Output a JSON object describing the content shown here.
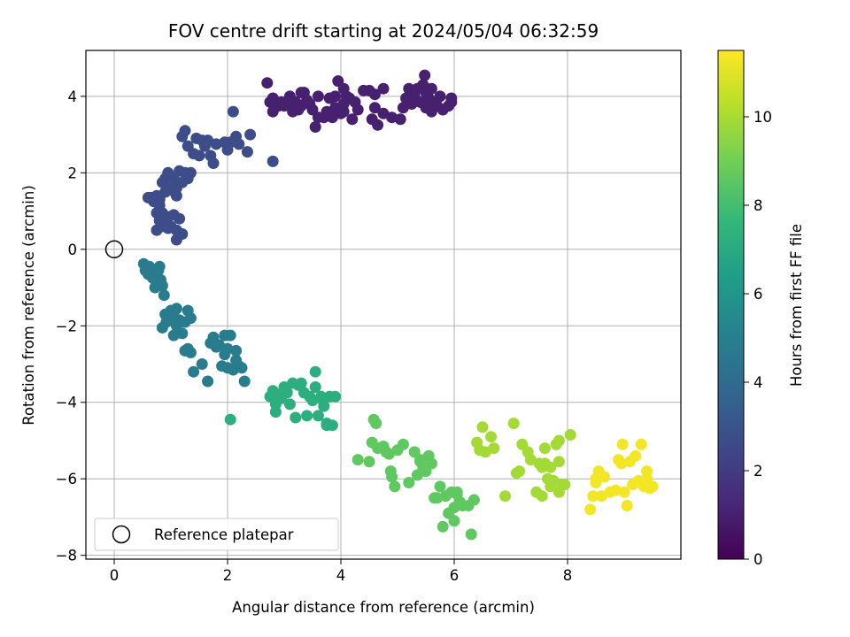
{
  "chart_data": {
    "type": "scatter",
    "title": "FOV centre drift starting at 2024/05/04 06:32:59",
    "xlabel": "Angular distance from reference (arcmin)",
    "ylabel": "Rotation from reference (arcmin)",
    "xlim": [
      -0.5,
      10.0
    ],
    "ylim": [
      -8.1,
      5.2
    ],
    "xticks": [
      0,
      2,
      4,
      6,
      8
    ],
    "yticks": [
      -8,
      -6,
      -4,
      -2,
      0,
      2,
      4
    ],
    "grid": true,
    "legend": {
      "position": "lower-left",
      "entries": [
        "Reference platepar"
      ]
    },
    "reference_point": {
      "x": 0,
      "y": 0,
      "label": "Reference platepar"
    },
    "colorbar": {
      "label": "Hours from first FF file",
      "colormap": "viridis",
      "range": [
        0,
        11.5
      ],
      "ticks": [
        0,
        2,
        4,
        6,
        8,
        10
      ],
      "colors": [
        "#440154",
        "#482878",
        "#3e4989",
        "#31688e",
        "#26828e",
        "#1f9e89",
        "#35b779",
        "#6ece58",
        "#b5de2b",
        "#fde725"
      ]
    },
    "series": [
      {
        "points": [
          [
            5.48,
            4.55
          ],
          [
            5.45,
            4.3
          ],
          [
            5.6,
            4.2
          ],
          [
            5.5,
            4.1
          ],
          [
            5.55,
            3.95
          ],
          [
            5.65,
            3.85
          ],
          [
            5.7,
            3.75
          ],
          [
            5.6,
            3.6
          ],
          [
            5.5,
            3.7
          ],
          [
            5.4,
            3.85
          ],
          [
            5.3,
            4.0
          ],
          [
            5.35,
            4.2
          ],
          [
            5.75,
            4.0
          ],
          [
            5.8,
            3.65
          ],
          [
            5.95,
            3.85
          ],
          [
            5.95,
            3.95
          ],
          [
            5.9,
            3.75
          ],
          [
            5.2,
            4.2
          ],
          [
            5.25,
            3.8
          ],
          [
            5.1,
            3.7
          ],
          [
            5.05,
            3.4
          ],
          [
            4.9,
            3.45
          ],
          [
            4.75,
            3.55
          ],
          [
            4.6,
            3.7
          ],
          [
            4.55,
            3.4
          ],
          [
            4.65,
            3.25
          ],
          [
            4.75,
            4.2
          ],
          [
            4.6,
            4.05
          ],
          [
            4.5,
            4.15
          ],
          [
            4.4,
            4.15
          ],
          [
            4.25,
            3.85
          ],
          [
            4.3,
            3.65
          ],
          [
            4.2,
            3.4
          ],
          [
            4.15,
            3.95
          ],
          [
            4.1,
            4.0
          ],
          [
            4.05,
            4.2
          ],
          [
            4.05,
            3.8
          ],
          [
            4.0,
            3.55
          ],
          [
            3.95,
            3.6
          ],
          [
            3.95,
            4.4
          ],
          [
            3.9,
            4.0
          ],
          [
            3.9,
            3.7
          ],
          [
            3.85,
            3.45
          ],
          [
            3.8,
            3.95
          ],
          [
            3.75,
            3.6
          ],
          [
            3.7,
            3.45
          ],
          [
            3.6,
            3.45
          ],
          [
            3.55,
            3.2
          ],
          [
            3.5,
            3.65
          ],
          [
            3.45,
            3.8
          ],
          [
            3.4,
            3.9
          ],
          [
            3.35,
            4.1
          ],
          [
            3.3,
            3.75
          ],
          [
            3.25,
            3.65
          ],
          [
            3.2,
            3.85
          ],
          [
            3.15,
            3.6
          ],
          [
            3.1,
            4.0
          ],
          [
            3.05,
            3.85
          ],
          [
            3.0,
            3.75
          ],
          [
            2.95,
            3.85
          ],
          [
            2.9,
            3.75
          ],
          [
            2.85,
            3.8
          ],
          [
            2.8,
            3.6
          ],
          [
            2.8,
            3.95
          ],
          [
            2.75,
            3.85
          ],
          [
            2.7,
            4.35
          ],
          [
            3.3,
            4.1
          ],
          [
            4.05,
            3.6
          ],
          [
            5.15,
            3.95
          ],
          [
            3.6,
            4.0
          ]
        ]
      },
      {
        "points": [
          [
            2.8,
            2.3
          ],
          [
            2.4,
            3.0
          ],
          [
            2.35,
            2.55
          ],
          [
            2.2,
            2.75
          ],
          [
            2.15,
            2.95
          ],
          [
            2.1,
            3.6
          ],
          [
            2.05,
            2.8
          ],
          [
            2.0,
            2.6
          ],
          [
            1.95,
            2.8
          ],
          [
            1.8,
            2.75
          ],
          [
            1.75,
            2.25
          ],
          [
            1.7,
            2.45
          ],
          [
            1.65,
            2.85
          ],
          [
            1.6,
            2.7
          ],
          [
            1.55,
            2.85
          ],
          [
            1.5,
            2.45
          ],
          [
            1.45,
            2.9
          ],
          [
            1.4,
            2.5
          ],
          [
            1.3,
            2.7
          ],
          [
            1.25,
            3.1
          ],
          [
            1.2,
            2.95
          ],
          [
            1.35,
            2.0
          ],
          [
            1.3,
            1.85
          ],
          [
            1.25,
            2.0
          ],
          [
            1.2,
            1.75
          ],
          [
            1.15,
            2.05
          ],
          [
            1.1,
            1.6
          ],
          [
            1.1,
            1.4
          ],
          [
            1.05,
            1.85
          ],
          [
            1.0,
            1.55
          ],
          [
            0.95,
            2.0
          ],
          [
            0.9,
            1.85
          ],
          [
            0.85,
            1.75
          ],
          [
            1.0,
            1.6
          ],
          [
            0.9,
            1.5
          ],
          [
            0.8,
            1.3
          ],
          [
            0.75,
            1.4
          ],
          [
            0.7,
            1.25
          ],
          [
            0.65,
            1.35
          ],
          [
            0.6,
            1.35
          ],
          [
            0.75,
            0.95
          ],
          [
            0.8,
            1.15
          ],
          [
            0.85,
            0.95
          ],
          [
            0.9,
            0.75
          ],
          [
            0.95,
            0.85
          ],
          [
            1.0,
            0.6
          ],
          [
            1.05,
            0.9
          ],
          [
            1.1,
            0.5
          ],
          [
            1.15,
            0.8
          ],
          [
            1.2,
            0.4
          ],
          [
            1.1,
            0.25
          ],
          [
            0.95,
            0.55
          ],
          [
            0.85,
            0.6
          ],
          [
            0.75,
            0.5
          ],
          [
            0.8,
            0.75
          ]
        ]
      },
      {
        "points": [
          [
            0.52,
            -0.38
          ],
          [
            0.55,
            -0.55
          ],
          [
            0.6,
            -0.65
          ],
          [
            0.62,
            -0.45
          ],
          [
            0.68,
            -0.75
          ],
          [
            0.72,
            -1.0
          ],
          [
            0.78,
            -0.55
          ],
          [
            0.8,
            -0.45
          ],
          [
            0.82,
            -0.8
          ],
          [
            0.85,
            -0.95
          ],
          [
            0.88,
            -1.2
          ],
          [
            0.9,
            -1.7
          ],
          [
            0.92,
            -1.9
          ],
          [
            0.95,
            -1.8
          ],
          [
            1.0,
            -1.6
          ],
          [
            1.05,
            -1.75
          ],
          [
            1.1,
            -1.55
          ],
          [
            1.05,
            -2.25
          ],
          [
            1.1,
            -2.0
          ],
          [
            1.15,
            -1.85
          ],
          [
            1.2,
            -2.2
          ],
          [
            1.25,
            -1.9
          ],
          [
            1.3,
            -1.6
          ],
          [
            1.35,
            -1.8
          ],
          [
            1.25,
            -2.65
          ],
          [
            1.3,
            -2.6
          ],
          [
            1.35,
            -2.7
          ],
          [
            1.4,
            -3.2
          ],
          [
            1.55,
            -3.0
          ],
          [
            1.65,
            -3.45
          ],
          [
            1.7,
            -2.45
          ],
          [
            1.75,
            -2.3
          ],
          [
            1.8,
            -2.55
          ],
          [
            1.85,
            -2.5
          ],
          [
            1.95,
            -2.25
          ],
          [
            2.0,
            -2.6
          ],
          [
            2.05,
            -2.25
          ],
          [
            2.1,
            -3.15
          ],
          [
            2.15,
            -2.9
          ],
          [
            2.2,
            -3.05
          ],
          [
            2.25,
            -3.1
          ],
          [
            2.3,
            -3.45
          ],
          [
            1.9,
            -3.05
          ],
          [
            2.0,
            -3.1
          ],
          [
            2.15,
            -2.65
          ],
          [
            1.95,
            -2.75
          ],
          [
            0.85,
            -2.05
          ]
        ]
      },
      {
        "points": [
          [
            2.75,
            -3.85
          ],
          [
            2.8,
            -3.7
          ],
          [
            2.85,
            -4.05
          ],
          [
            2.9,
            -3.8
          ],
          [
            2.95,
            -3.9
          ],
          [
            3.0,
            -3.6
          ],
          [
            3.05,
            -3.75
          ],
          [
            3.1,
            -4.05
          ],
          [
            3.15,
            -3.5
          ],
          [
            3.2,
            -4.4
          ],
          [
            3.25,
            -3.55
          ],
          [
            3.3,
            -3.5
          ],
          [
            3.35,
            -3.75
          ],
          [
            3.4,
            -4.35
          ],
          [
            3.45,
            -3.85
          ],
          [
            3.5,
            -3.95
          ],
          [
            3.55,
            -3.2
          ],
          [
            3.55,
            -3.6
          ],
          [
            3.6,
            -4.35
          ],
          [
            3.65,
            -3.85
          ],
          [
            3.7,
            -4.1
          ],
          [
            3.75,
            -4.6
          ],
          [
            3.8,
            -3.85
          ],
          [
            3.85,
            -4.6
          ],
          [
            3.9,
            -3.85
          ],
          [
            3.75,
            -4.55
          ],
          [
            3.65,
            -3.9
          ],
          [
            2.85,
            -4.25
          ],
          [
            2.9,
            -3.8
          ],
          [
            2.05,
            -4.45
          ]
        ]
      },
      {
        "points": [
          [
            4.3,
            -5.5
          ],
          [
            4.5,
            -5.55
          ],
          [
            4.55,
            -5.05
          ],
          [
            4.58,
            -4.45
          ],
          [
            4.62,
            -4.55
          ],
          [
            4.65,
            -5.2
          ],
          [
            4.75,
            -5.15
          ],
          [
            4.8,
            -5.3
          ],
          [
            4.85,
            -5.35
          ],
          [
            4.88,
            -5.8
          ],
          [
            4.9,
            -5.95
          ],
          [
            4.95,
            -6.2
          ],
          [
            5.0,
            -5.25
          ],
          [
            5.1,
            -5.1
          ],
          [
            5.2,
            -6.1
          ],
          [
            5.3,
            -5.3
          ],
          [
            5.35,
            -5.9
          ],
          [
            5.4,
            -5.55
          ],
          [
            5.45,
            -5.7
          ],
          [
            5.5,
            -5.8
          ],
          [
            5.55,
            -5.4
          ],
          [
            5.6,
            -5.6
          ],
          [
            5.65,
            -6.5
          ],
          [
            5.7,
            -6.5
          ],
          [
            5.75,
            -6.2
          ],
          [
            5.8,
            -7.25
          ],
          [
            5.85,
            -6.45
          ],
          [
            5.9,
            -6.9
          ],
          [
            5.95,
            -6.35
          ],
          [
            6.0,
            -7.1
          ],
          [
            6.05,
            -6.4
          ],
          [
            6.1,
            -6.6
          ],
          [
            6.15,
            -6.7
          ],
          [
            6.25,
            -6.7
          ],
          [
            6.3,
            -7.45
          ],
          [
            6.35,
            -6.55
          ],
          [
            6.05,
            -6.35
          ],
          [
            6.0,
            -6.75
          ],
          [
            5.4,
            -5.5
          ]
        ]
      },
      {
        "points": [
          [
            6.4,
            -5.05
          ],
          [
            6.45,
            -5.25
          ],
          [
            6.5,
            -4.65
          ],
          [
            6.55,
            -5.3
          ],
          [
            6.65,
            -4.9
          ],
          [
            6.7,
            -5.2
          ],
          [
            6.9,
            -6.45
          ],
          [
            7.05,
            -4.55
          ],
          [
            7.1,
            -5.85
          ],
          [
            7.15,
            -5.8
          ],
          [
            7.2,
            -5.1
          ],
          [
            7.35,
            -5.5
          ],
          [
            7.45,
            -6.35
          ],
          [
            7.5,
            -5.6
          ],
          [
            7.55,
            -5.7
          ],
          [
            7.6,
            -5.2
          ],
          [
            7.65,
            -6.0
          ],
          [
            7.7,
            -5.7
          ],
          [
            7.75,
            -6.05
          ],
          [
            7.8,
            -5.1
          ],
          [
            7.85,
            -5.0
          ],
          [
            7.85,
            -5.55
          ],
          [
            7.9,
            -6.15
          ],
          [
            8.05,
            -4.85
          ],
          [
            7.95,
            -6.15
          ],
          [
            7.55,
            -6.45
          ],
          [
            7.6,
            -5.6
          ],
          [
            7.85,
            -6.35
          ],
          [
            7.7,
            -6.2
          ],
          [
            7.3,
            -5.3
          ]
        ]
      },
      {
        "points": [
          [
            8.4,
            -6.8
          ],
          [
            8.45,
            -6.45
          ],
          [
            8.5,
            -6.0
          ],
          [
            8.55,
            -5.8
          ],
          [
            8.6,
            -6.45
          ],
          [
            8.65,
            -5.95
          ],
          [
            8.75,
            -6.35
          ],
          [
            8.85,
            -6.3
          ],
          [
            8.9,
            -5.5
          ],
          [
            8.95,
            -5.6
          ],
          [
            8.97,
            -5.1
          ],
          [
            9.05,
            -6.7
          ],
          [
            9.1,
            -5.55
          ],
          [
            9.15,
            -6.15
          ],
          [
            9.2,
            -5.4
          ],
          [
            9.25,
            -6.05
          ],
          [
            9.3,
            -5.1
          ],
          [
            9.35,
            -6.2
          ],
          [
            9.4,
            -5.8
          ],
          [
            9.45,
            -6.25
          ],
          [
            9.5,
            -6.2
          ],
          [
            9.0,
            -6.35
          ],
          [
            8.5,
            -6.1
          ],
          [
            9.4,
            -6.0
          ]
        ]
      }
    ],
    "series_color_values": [
      1.0,
      2.7,
      4.8,
      7.2,
      8.6,
      9.9,
      11.3
    ]
  }
}
